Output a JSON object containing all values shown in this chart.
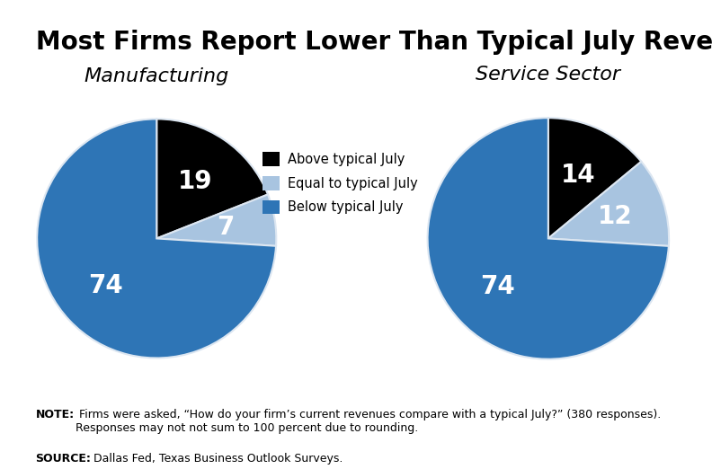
{
  "title": "Most Firms Report Lower Than Typical July Revenues",
  "background_color": "#dce6f1",
  "page_background": "#ffffff",
  "strip_color": "#8aafd4",
  "pie1_title": "Manufacturing",
  "pie2_title": "Service Sector",
  "pie1_values": [
    19,
    7,
    74
  ],
  "pie2_values": [
    14,
    12,
    74
  ],
  "pie1_labels": [
    "19",
    "7",
    "74"
  ],
  "pie2_labels": [
    "14",
    "12",
    "74"
  ],
  "colors": [
    "#000000",
    "#a8c4e0",
    "#2e75b6"
  ],
  "legend_labels": [
    "Above typical July",
    "Equal to typical July",
    "Below typical July"
  ],
  "note_bold": "NOTE:",
  "note_text": " Firms were asked, “How do your firm’s current revenues compare with a typical July?” (380 responses).\nResponses may not not sum to 100 percent due to rounding.",
  "source_bold": "SOURCE:",
  "source_text": " Dallas Fed, Texas Business Outlook Surveys.",
  "title_fontsize": 20,
  "pie_title_fontsize": 16,
  "legend_fontsize": 10.5,
  "label_fontsize": 20,
  "note_fontsize": 9
}
